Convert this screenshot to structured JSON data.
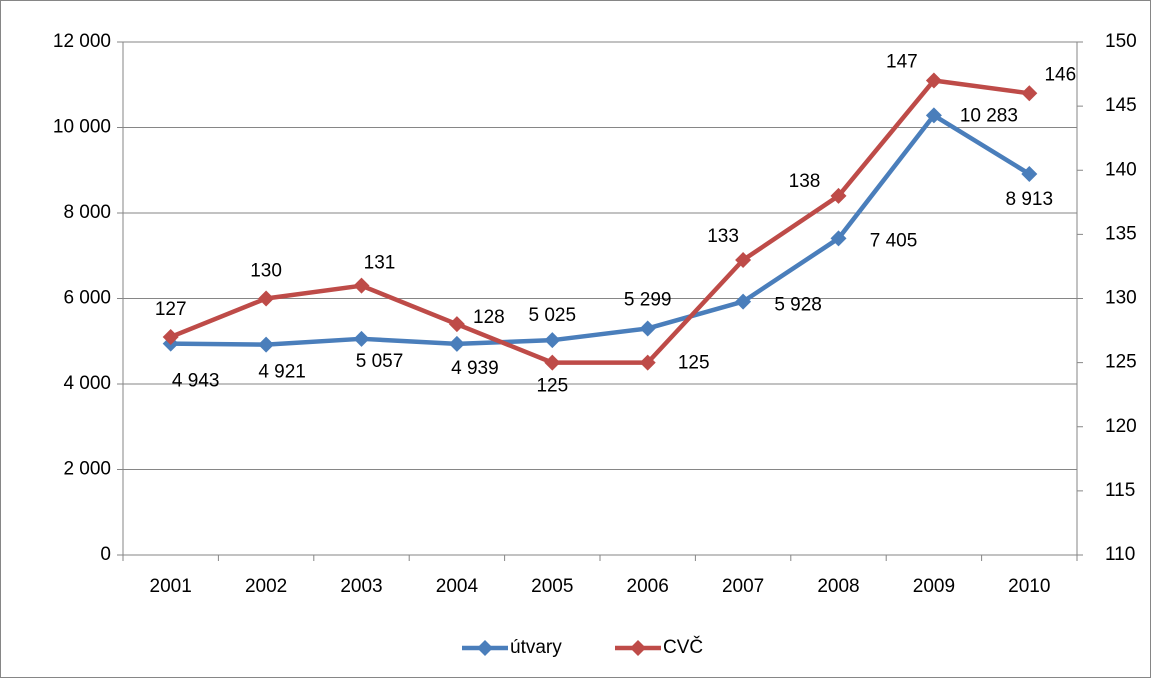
{
  "chart_data": {
    "type": "line",
    "categories": [
      "2001",
      "2002",
      "2003",
      "2004",
      "2005",
      "2006",
      "2007",
      "2008",
      "2009",
      "2010"
    ],
    "series": [
      {
        "name": "útvary",
        "color": "#4a7ebb",
        "label_color": "#243f60",
        "values": [
          4943,
          4921,
          5057,
          4939,
          5025,
          5299,
          5928,
          7405,
          10283,
          8913
        ],
        "value_labels": [
          "4 943",
          "4 921",
          "5 057",
          "4 939",
          "5 025",
          "5 299",
          "5 928",
          "7 405",
          "10 283",
          "8 913"
        ]
      },
      {
        "name": "CVČ",
        "color": "#be4b48",
        "label_color": "#772c2a",
        "axis": "y2",
        "values": [
          127,
          130,
          131,
          128,
          125,
          125,
          133,
          138,
          147,
          146
        ]
      }
    ],
    "ylim": [
      0,
      12000
    ],
    "yticks": [
      0,
      {
        "value": 2000,
        "label": "2 000"
      },
      {
        "value": 4000,
        "label": "4 000"
      },
      {
        "value": 6000,
        "label": "6 000"
      },
      {
        "value": 8000,
        "label": "8 000"
      },
      {
        "value": 10000,
        "label": "10 000"
      },
      {
        "value": 12000,
        "label": "12 000"
      }
    ],
    "y2lim": [
      110,
      150
    ],
    "y2ticks": [
      110,
      115,
      120,
      125,
      130,
      135,
      140,
      145,
      150
    ],
    "grid": true,
    "legend": "bottom"
  }
}
